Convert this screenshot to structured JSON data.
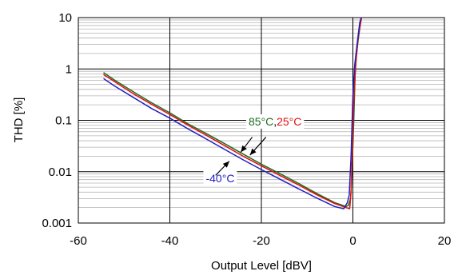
{
  "chart_data": {
    "type": "line",
    "xlabel": "Output Level  [dBV]",
    "ylabel": "THD  [%]",
    "xlim": [
      -60,
      20
    ],
    "ylim": [
      0.001,
      10
    ],
    "y_scale": "log",
    "grid": true,
    "x_ticks": [
      -60,
      -40,
      -20,
      0,
      20
    ],
    "x_tick_labels": [
      "-60",
      "-40",
      "-20",
      "0",
      "20"
    ],
    "y_ticks": [
      0.001,
      0.01,
      0.1,
      1,
      10
    ],
    "y_tick_labels": [
      "0.001",
      "0.01",
      "0.1",
      "1",
      "10"
    ],
    "series": [
      {
        "name": "85°C",
        "color": "#1e6b1e",
        "points": [
          [
            -54.5,
            0.85
          ],
          [
            -52,
            0.6
          ],
          [
            -48,
            0.36
          ],
          [
            -44,
            0.22
          ],
          [
            -40,
            0.14
          ],
          [
            -36,
            0.085
          ],
          [
            -32,
            0.055
          ],
          [
            -28,
            0.035
          ],
          [
            -24,
            0.022
          ],
          [
            -20,
            0.014
          ],
          [
            -16,
            0.0092
          ],
          [
            -12,
            0.006
          ],
          [
            -8,
            0.0038
          ],
          [
            -4,
            0.0025
          ],
          [
            -1.5,
            0.0021
          ],
          [
            -1,
            0.0022
          ],
          [
            -0.5,
            0.003
          ],
          [
            -0.2,
            0.01
          ],
          [
            0.2,
            0.1
          ],
          [
            0.5,
            0.9
          ],
          [
            0.8,
            2.0
          ],
          [
            1.2,
            4.0
          ],
          [
            1.8,
            9.5
          ]
        ]
      },
      {
        "name": "25°C",
        "color": "#e01010",
        "points": [
          [
            -54.5,
            0.78
          ],
          [
            -52,
            0.56
          ],
          [
            -48,
            0.33
          ],
          [
            -44,
            0.205
          ],
          [
            -40,
            0.13
          ],
          [
            -36,
            0.08
          ],
          [
            -32,
            0.051
          ],
          [
            -28,
            0.032
          ],
          [
            -24,
            0.02
          ],
          [
            -20,
            0.013
          ],
          [
            -16,
            0.0085
          ],
          [
            -12,
            0.0056
          ],
          [
            -8,
            0.0036
          ],
          [
            -4,
            0.0024
          ],
          [
            -1.5,
            0.002
          ],
          [
            -0.7,
            0.0019
          ],
          [
            -0.4,
            0.004
          ],
          [
            -0.1,
            0.03
          ],
          [
            0.3,
            0.4
          ],
          [
            0.7,
            1.5
          ],
          [
            1.2,
            4.5
          ],
          [
            1.9,
            10
          ]
        ]
      },
      {
        "name": "-40°C",
        "color": "#2020c0",
        "points": [
          [
            -54.5,
            0.65
          ],
          [
            -52,
            0.46
          ],
          [
            -48,
            0.28
          ],
          [
            -44,
            0.17
          ],
          [
            -40,
            0.11
          ],
          [
            -36,
            0.068
          ],
          [
            -32,
            0.043
          ],
          [
            -28,
            0.027
          ],
          [
            -24,
            0.017
          ],
          [
            -20,
            0.011
          ],
          [
            -16,
            0.0072
          ],
          [
            -12,
            0.0047
          ],
          [
            -8,
            0.0031
          ],
          [
            -4,
            0.0021
          ],
          [
            -2,
            0.0019
          ],
          [
            -1.2,
            0.0025
          ],
          [
            -0.8,
            0.0035
          ],
          [
            -0.4,
            0.02
          ],
          [
            0,
            0.3
          ],
          [
            0.4,
            1.2
          ],
          [
            0.9,
            3.0
          ],
          [
            1.5,
            8.0
          ],
          [
            1.8,
            10
          ]
        ]
      }
    ],
    "annotations": [
      {
        "parts": [
          {
            "text": "85°C",
            "color": "#1e6b1e"
          },
          {
            "text": ",",
            "color": "#000000"
          },
          {
            "text": "25°C",
            "color": "#e01010"
          }
        ],
        "anchor": [
          -17,
          0.095
        ],
        "arrows": [
          [
            [
              -22,
              0.047
            ],
            [
              -24.5,
              0.024
            ]
          ],
          [
            [
              -19,
              0.047
            ],
            [
              -22.5,
              0.021
            ]
          ]
        ]
      },
      {
        "parts": [
          {
            "text": "-40°C",
            "color": "#2020c0"
          }
        ],
        "anchor": [
          -29,
          0.0075
        ],
        "arrows": [
          [
            [
              -30,
              0.0085
            ],
            [
              -27,
              0.016
            ]
          ]
        ]
      }
    ]
  }
}
